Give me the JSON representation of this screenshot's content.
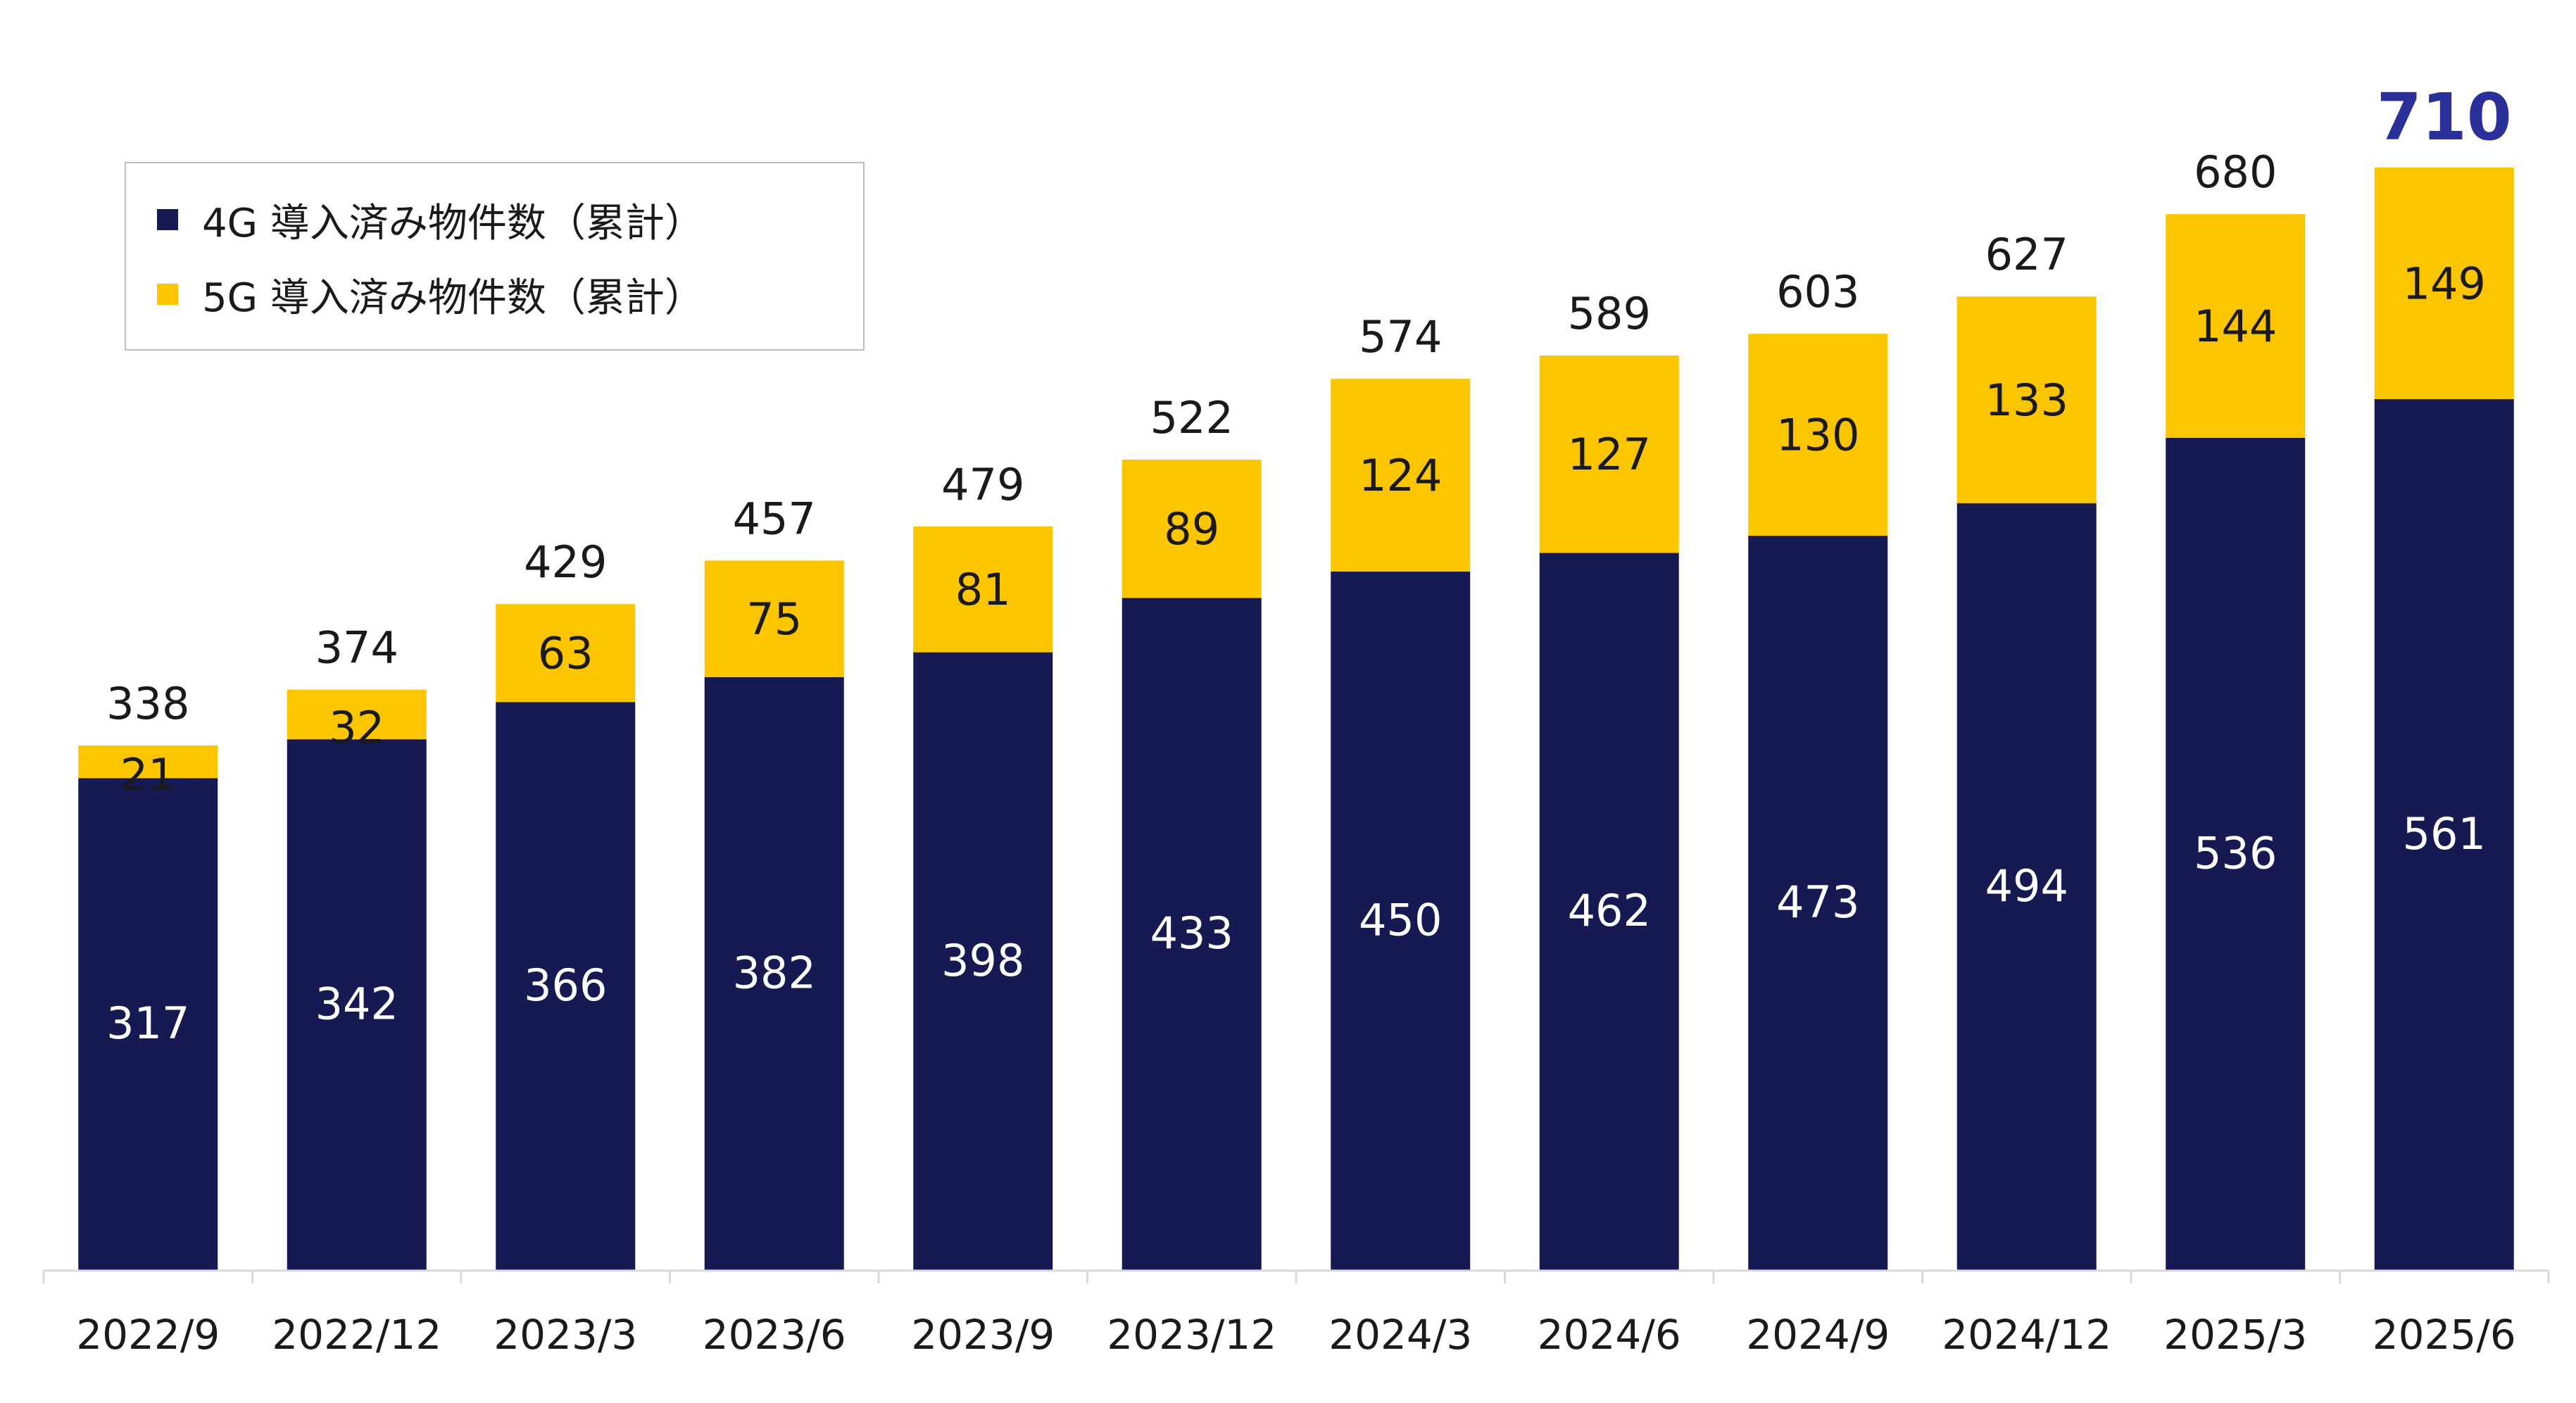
{
  "chart_data": {
    "type": "bar",
    "stacked": true,
    "categories": [
      "2022/9",
      "2022/12",
      "2023/3",
      "2023/6",
      "2023/9",
      "2023/12",
      "2024/3",
      "2024/6",
      "2024/9",
      "2024/12",
      "2025/3",
      "2025/6"
    ],
    "series": [
      {
        "name": "4G 導入済み物件数（累計）",
        "color": "#171a52",
        "values": [
          317,
          342,
          366,
          382,
          398,
          433,
          450,
          462,
          473,
          494,
          536,
          561
        ]
      },
      {
        "name": "5G 導入済み物件数（累計）",
        "color": "#fbc500",
        "values": [
          21,
          32,
          63,
          75,
          81,
          89,
          124,
          127,
          130,
          133,
          144,
          149
        ]
      }
    ],
    "totals": [
      338,
      374,
      429,
      457,
      479,
      522,
      574,
      589,
      603,
      627,
      680,
      710
    ],
    "highlight_total_color": "#2b2f9a",
    "title": "",
    "xlabel": "",
    "ylabel": "",
    "ylim": [
      0,
      710
    ],
    "grid": false,
    "legend_position": "top-left"
  }
}
